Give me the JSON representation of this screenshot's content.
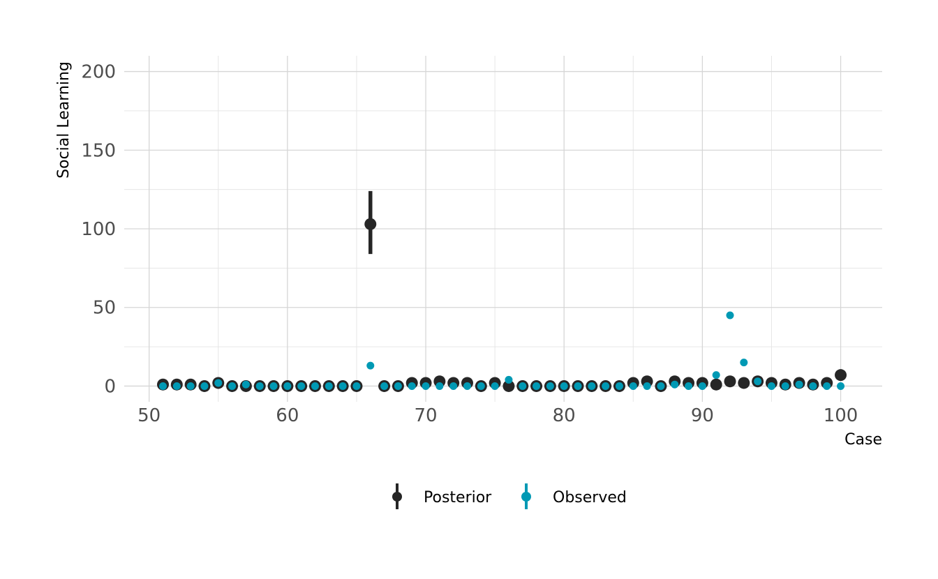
{
  "chart_data": {
    "type": "scatter",
    "xlabel": "Case",
    "ylabel": "Social Learning",
    "xlim": [
      48.2,
      103
    ],
    "ylim": [
      -10,
      210
    ],
    "x_ticks": [
      50,
      60,
      70,
      80,
      90,
      100
    ],
    "y_ticks": [
      0,
      50,
      100,
      150,
      200
    ],
    "x_tick_labels": [
      "50",
      "60",
      "70",
      "80",
      "90",
      "100"
    ],
    "y_tick_labels": [
      "0",
      "50",
      "100",
      "150",
      "200"
    ],
    "grid": true,
    "legend_position": "bottom",
    "series": [
      {
        "name": "Posterior",
        "color": "#262626",
        "x": [
          51,
          52,
          53,
          54,
          55,
          56,
          57,
          58,
          59,
          60,
          61,
          62,
          63,
          64,
          65,
          66,
          67,
          68,
          69,
          70,
          71,
          72,
          73,
          74,
          75,
          76,
          77,
          78,
          79,
          80,
          81,
          82,
          83,
          84,
          85,
          86,
          87,
          88,
          89,
          90,
          91,
          92,
          93,
          94,
          95,
          96,
          97,
          98,
          99,
          100
        ],
        "y": [
          1,
          1,
          1,
          0,
          2,
          0,
          0,
          0,
          0,
          0,
          0,
          0,
          0,
          0,
          0,
          103,
          0,
          0,
          2,
          2,
          3,
          2,
          2,
          0,
          2,
          0,
          0,
          0,
          0,
          0,
          0,
          0,
          0,
          0,
          2,
          3,
          0,
          3,
          2,
          2,
          1,
          3,
          2,
          3,
          2,
          1,
          2,
          1,
          2,
          7
        ],
        "error_bars": [
          {
            "x": 66,
            "low": 84,
            "high": 124
          }
        ]
      },
      {
        "name": "Observed",
        "color": "#0099b4",
        "x": [
          51,
          52,
          53,
          54,
          55,
          56,
          57,
          58,
          59,
          60,
          61,
          62,
          63,
          64,
          65,
          66,
          67,
          68,
          69,
          70,
          71,
          72,
          73,
          74,
          75,
          76,
          77,
          78,
          79,
          80,
          81,
          82,
          83,
          84,
          85,
          86,
          87,
          88,
          89,
          90,
          91,
          92,
          93,
          94,
          95,
          96,
          97,
          98,
          99,
          100
        ],
        "y": [
          0,
          0,
          0,
          0,
          2,
          0,
          1,
          0,
          0,
          0,
          0,
          0,
          0,
          0,
          0,
          13,
          0,
          0,
          0,
          0,
          0,
          0,
          0,
          0,
          0,
          4,
          0,
          0,
          0,
          0,
          0,
          0,
          0,
          0,
          0,
          0,
          0,
          1,
          0,
          0,
          7,
          45,
          15,
          3,
          0,
          0,
          1,
          0,
          0,
          0
        ]
      }
    ]
  }
}
